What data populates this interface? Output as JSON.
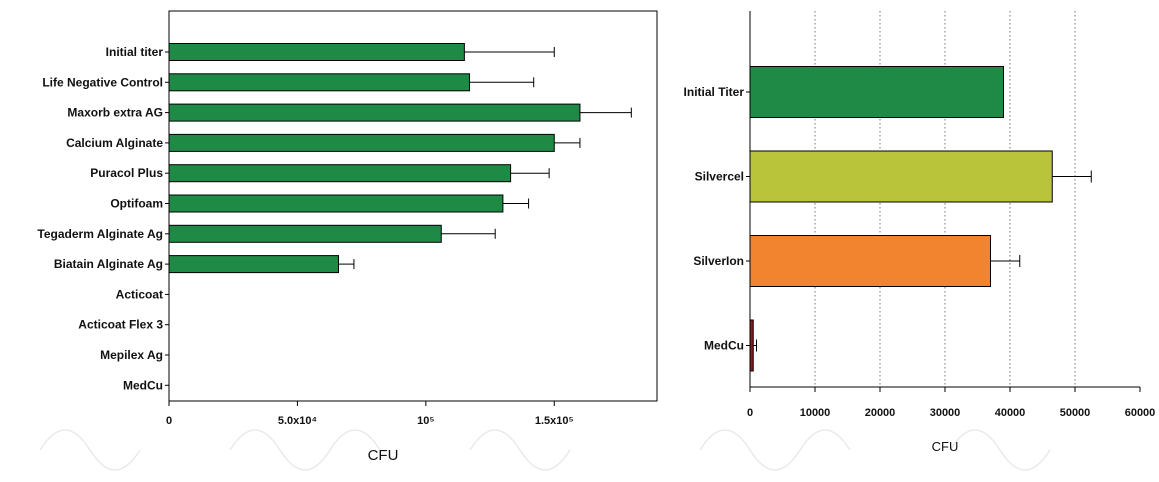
{
  "chart_data": [
    {
      "type": "bar",
      "orientation": "horizontal",
      "categories": [
        "Initial titer",
        "Life Negative Control",
        "Maxorb extra AG",
        "Calcium Alginate",
        "Puracol Plus",
        "Optifoam",
        "Tegaderm Alginate Ag",
        "Biatain Alginate Ag",
        "Acticoat",
        "Acticoat Flex 3",
        "Mepilex Ag",
        "MedCu"
      ],
      "values": [
        115000,
        117000,
        160000,
        150000,
        133000,
        130000,
        106000,
        66000,
        0,
        0,
        0,
        0
      ],
      "errors": [
        35000,
        25000,
        20000,
        10000,
        15000,
        10000,
        21000,
        6000,
        0,
        0,
        0,
        0
      ],
      "colors": [
        "#1e8a45",
        "#1e8a45",
        "#1e8a45",
        "#1e8a45",
        "#1e8a45",
        "#1e8a45",
        "#1e8a45",
        "#1e8a45",
        "#1e8a45",
        "#1e8a45",
        "#1e8a45",
        "#1e8a45"
      ],
      "xlim": [
        0,
        190000
      ],
      "xticks": [
        0,
        50000,
        100000,
        150000
      ],
      "xtick_labels": [
        "0",
        "5.0x10⁴",
        "10⁵",
        "1.5x10⁵"
      ],
      "xlabel": "CFU",
      "ylabel": "",
      "title": "",
      "grid": false,
      "legend": "none"
    },
    {
      "type": "bar",
      "orientation": "horizontal",
      "categories": [
        "Initial Titer",
        "Silvercel",
        "SilverIon",
        "MedCu"
      ],
      "values": [
        39000,
        46500,
        37000,
        500
      ],
      "errors": [
        0,
        6000,
        4500,
        500
      ],
      "colors": [
        "#1e8a45",
        "#b9c43a",
        "#f28430",
        "#8e1b1b"
      ],
      "xlim": [
        0,
        60000
      ],
      "xticks": [
        0,
        10000,
        20000,
        30000,
        40000,
        50000,
        60000
      ],
      "xtick_labels": [
        "0",
        "10000",
        "20000",
        "30000",
        "40000",
        "50000",
        "60000"
      ],
      "xlabel": "CFU",
      "ylabel": "",
      "title": "",
      "grid": "vertical dotted",
      "legend": "none"
    }
  ]
}
